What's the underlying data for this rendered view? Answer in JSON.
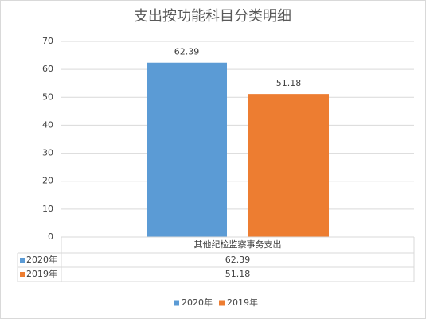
{
  "chart_data": {
    "type": "bar",
    "title": "支出按功能科目分类明细",
    "categories": [
      "其他纪检监察事务支出"
    ],
    "series": [
      {
        "name": "2020年",
        "color": "#5b9bd5",
        "values": [
          62.39
        ]
      },
      {
        "name": "2019年",
        "color": "#ed7d31",
        "values": [
          51.18
        ]
      }
    ],
    "ylim": [
      0,
      70
    ],
    "yticks": [
      0,
      10,
      20,
      30,
      40,
      50,
      60,
      70
    ],
    "grid": true,
    "legend": "bottom",
    "data_table": true
  }
}
